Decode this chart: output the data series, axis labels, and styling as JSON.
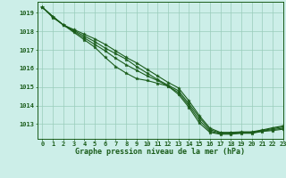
{
  "title": "Graphe pression niveau de la mer (hPa)",
  "bg_color": "#cceee8",
  "grid_color": "#99ccbb",
  "line_color": "#1a5c1a",
  "xlim": [
    -0.5,
    23
  ],
  "ylim": [
    1012.2,
    1019.6
  ],
  "yticks": [
    1013,
    1014,
    1015,
    1016,
    1017,
    1018,
    1019
  ],
  "xticks": [
    0,
    1,
    2,
    3,
    4,
    5,
    6,
    7,
    8,
    9,
    10,
    11,
    12,
    13,
    14,
    15,
    16,
    17,
    18,
    19,
    20,
    21,
    22,
    23
  ],
  "series": [
    [
      1019.3,
      1018.75,
      1018.35,
      1017.95,
      1017.55,
      1017.15,
      1016.6,
      1016.1,
      1015.75,
      1015.45,
      1015.35,
      1015.2,
      1015.05,
      1014.6,
      1013.9,
      1013.05,
      1012.55,
      1012.45,
      1012.45,
      1012.5,
      1012.5,
      1012.6,
      1012.65,
      1012.72
    ],
    [
      1019.3,
      1018.8,
      1018.35,
      1018.0,
      1017.65,
      1017.3,
      1016.95,
      1016.55,
      1016.2,
      1015.9,
      1015.6,
      1015.35,
      1015.05,
      1014.7,
      1014.0,
      1013.2,
      1012.62,
      1012.48,
      1012.48,
      1012.52,
      1012.52,
      1012.62,
      1012.7,
      1012.78
    ],
    [
      1019.3,
      1018.8,
      1018.35,
      1018.05,
      1017.75,
      1017.45,
      1017.1,
      1016.8,
      1016.5,
      1016.1,
      1015.75,
      1015.4,
      1015.1,
      1014.8,
      1014.1,
      1013.35,
      1012.7,
      1012.52,
      1012.52,
      1012.55,
      1012.55,
      1012.65,
      1012.75,
      1012.85
    ],
    [
      1019.3,
      1018.8,
      1018.35,
      1018.1,
      1017.85,
      1017.6,
      1017.3,
      1016.95,
      1016.6,
      1016.3,
      1015.95,
      1015.6,
      1015.25,
      1014.95,
      1014.25,
      1013.45,
      1012.78,
      1012.55,
      1012.55,
      1012.58,
      1012.58,
      1012.68,
      1012.8,
      1012.9
    ]
  ],
  "ylabel_fontsize": 6,
  "xlabel_fontsize": 6,
  "tick_fontsize": 5
}
